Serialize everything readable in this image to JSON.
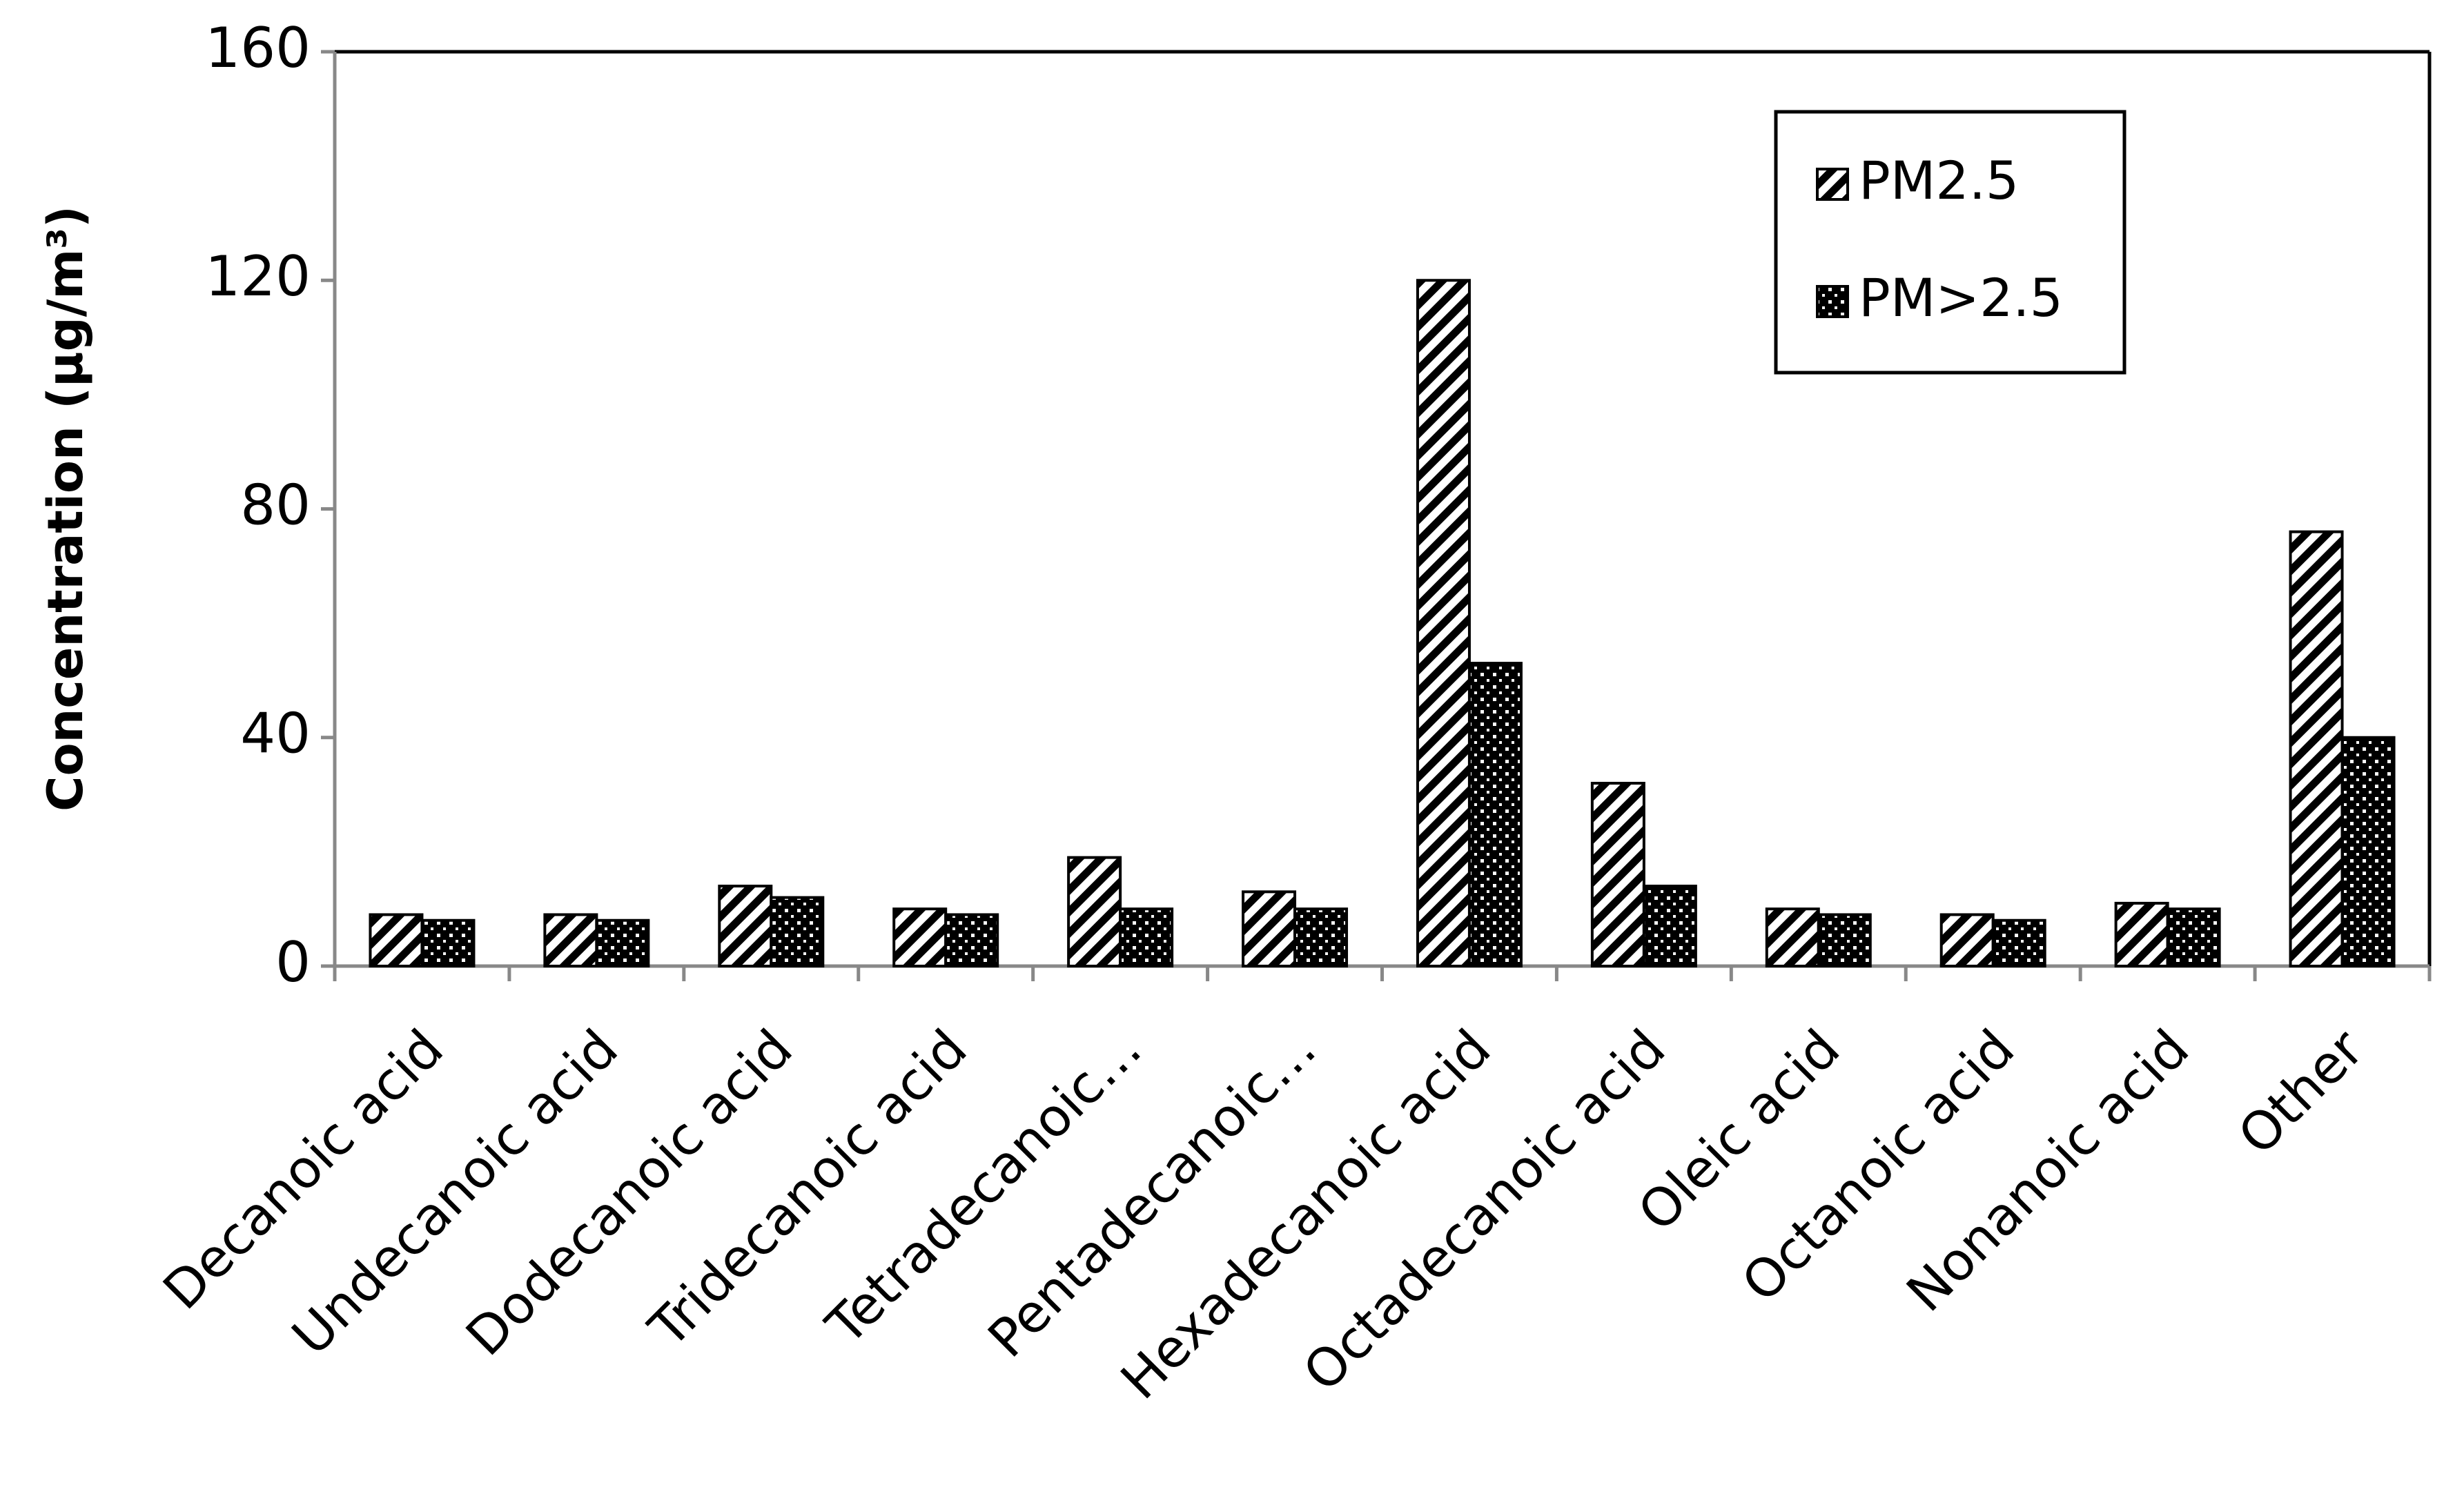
{
  "chart_data": {
    "type": "bar",
    "y_label": "Concentration (µg/m³)",
    "categories": [
      "Decanoic acid",
      "Undecanoic acid",
      "Dodecanoic acid",
      "Tridecanoic acid",
      "Tetradecanoic…",
      "Pentadecanoic…",
      "Hexadecanoic acid",
      "Octadecanoic acid",
      "Oleic acid",
      "Octanoic acid",
      "Nonanoic acid",
      "Other"
    ],
    "series": [
      {
        "name": "PM2.5",
        "color": "#000000",
        "hatch": "diagonal",
        "values": [
          9,
          9,
          14,
          10,
          19,
          13,
          120,
          32,
          10,
          9,
          11,
          76
        ]
      },
      {
        "name": "PM>2.5",
        "color": "#000000",
        "hatch": "dots",
        "values": [
          8,
          8,
          12,
          9,
          10,
          10,
          53,
          14,
          9,
          8,
          10,
          40
        ]
      }
    ],
    "ylim": [
      0,
      160
    ],
    "yticks": [
      0,
      40,
      80,
      120,
      160
    ],
    "legend": "upper right"
  }
}
